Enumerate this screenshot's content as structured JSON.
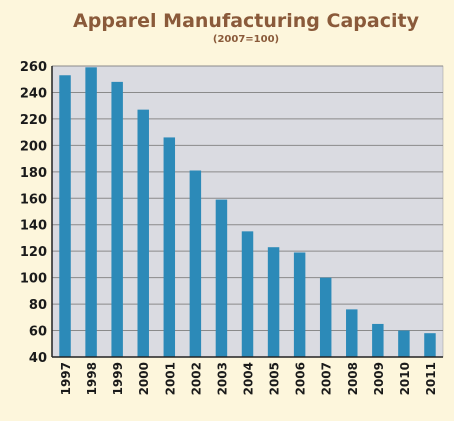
{
  "chart_data": {
    "type": "bar",
    "title": "Apparel Manufacturing Capacity",
    "subtitle": "(2007=100)",
    "xlabel": "",
    "ylabel": "",
    "categories": [
      "1997",
      "1998",
      "1999",
      "2000",
      "2001",
      "2002",
      "2003",
      "2004",
      "2005",
      "2006",
      "2007",
      "2008",
      "2009",
      "2010",
      "2011"
    ],
    "values": [
      253,
      259,
      248,
      227,
      206,
      181,
      159,
      135,
      123,
      119,
      100,
      76,
      65,
      60,
      58
    ],
    "ylim": [
      40,
      260
    ],
    "yticks": [
      40,
      60,
      80,
      100,
      120,
      140,
      160,
      180,
      200,
      220,
      240,
      260
    ],
    "grid": true,
    "legend": "none",
    "colors": {
      "background": "#fdf6dc",
      "plot_background": "#dadbe1",
      "bar": "#2c8ab8",
      "gridline": "#8a8a8a",
      "axis": "#222222",
      "title": "#8a5a3a",
      "text": "#1a1a1a"
    }
  }
}
